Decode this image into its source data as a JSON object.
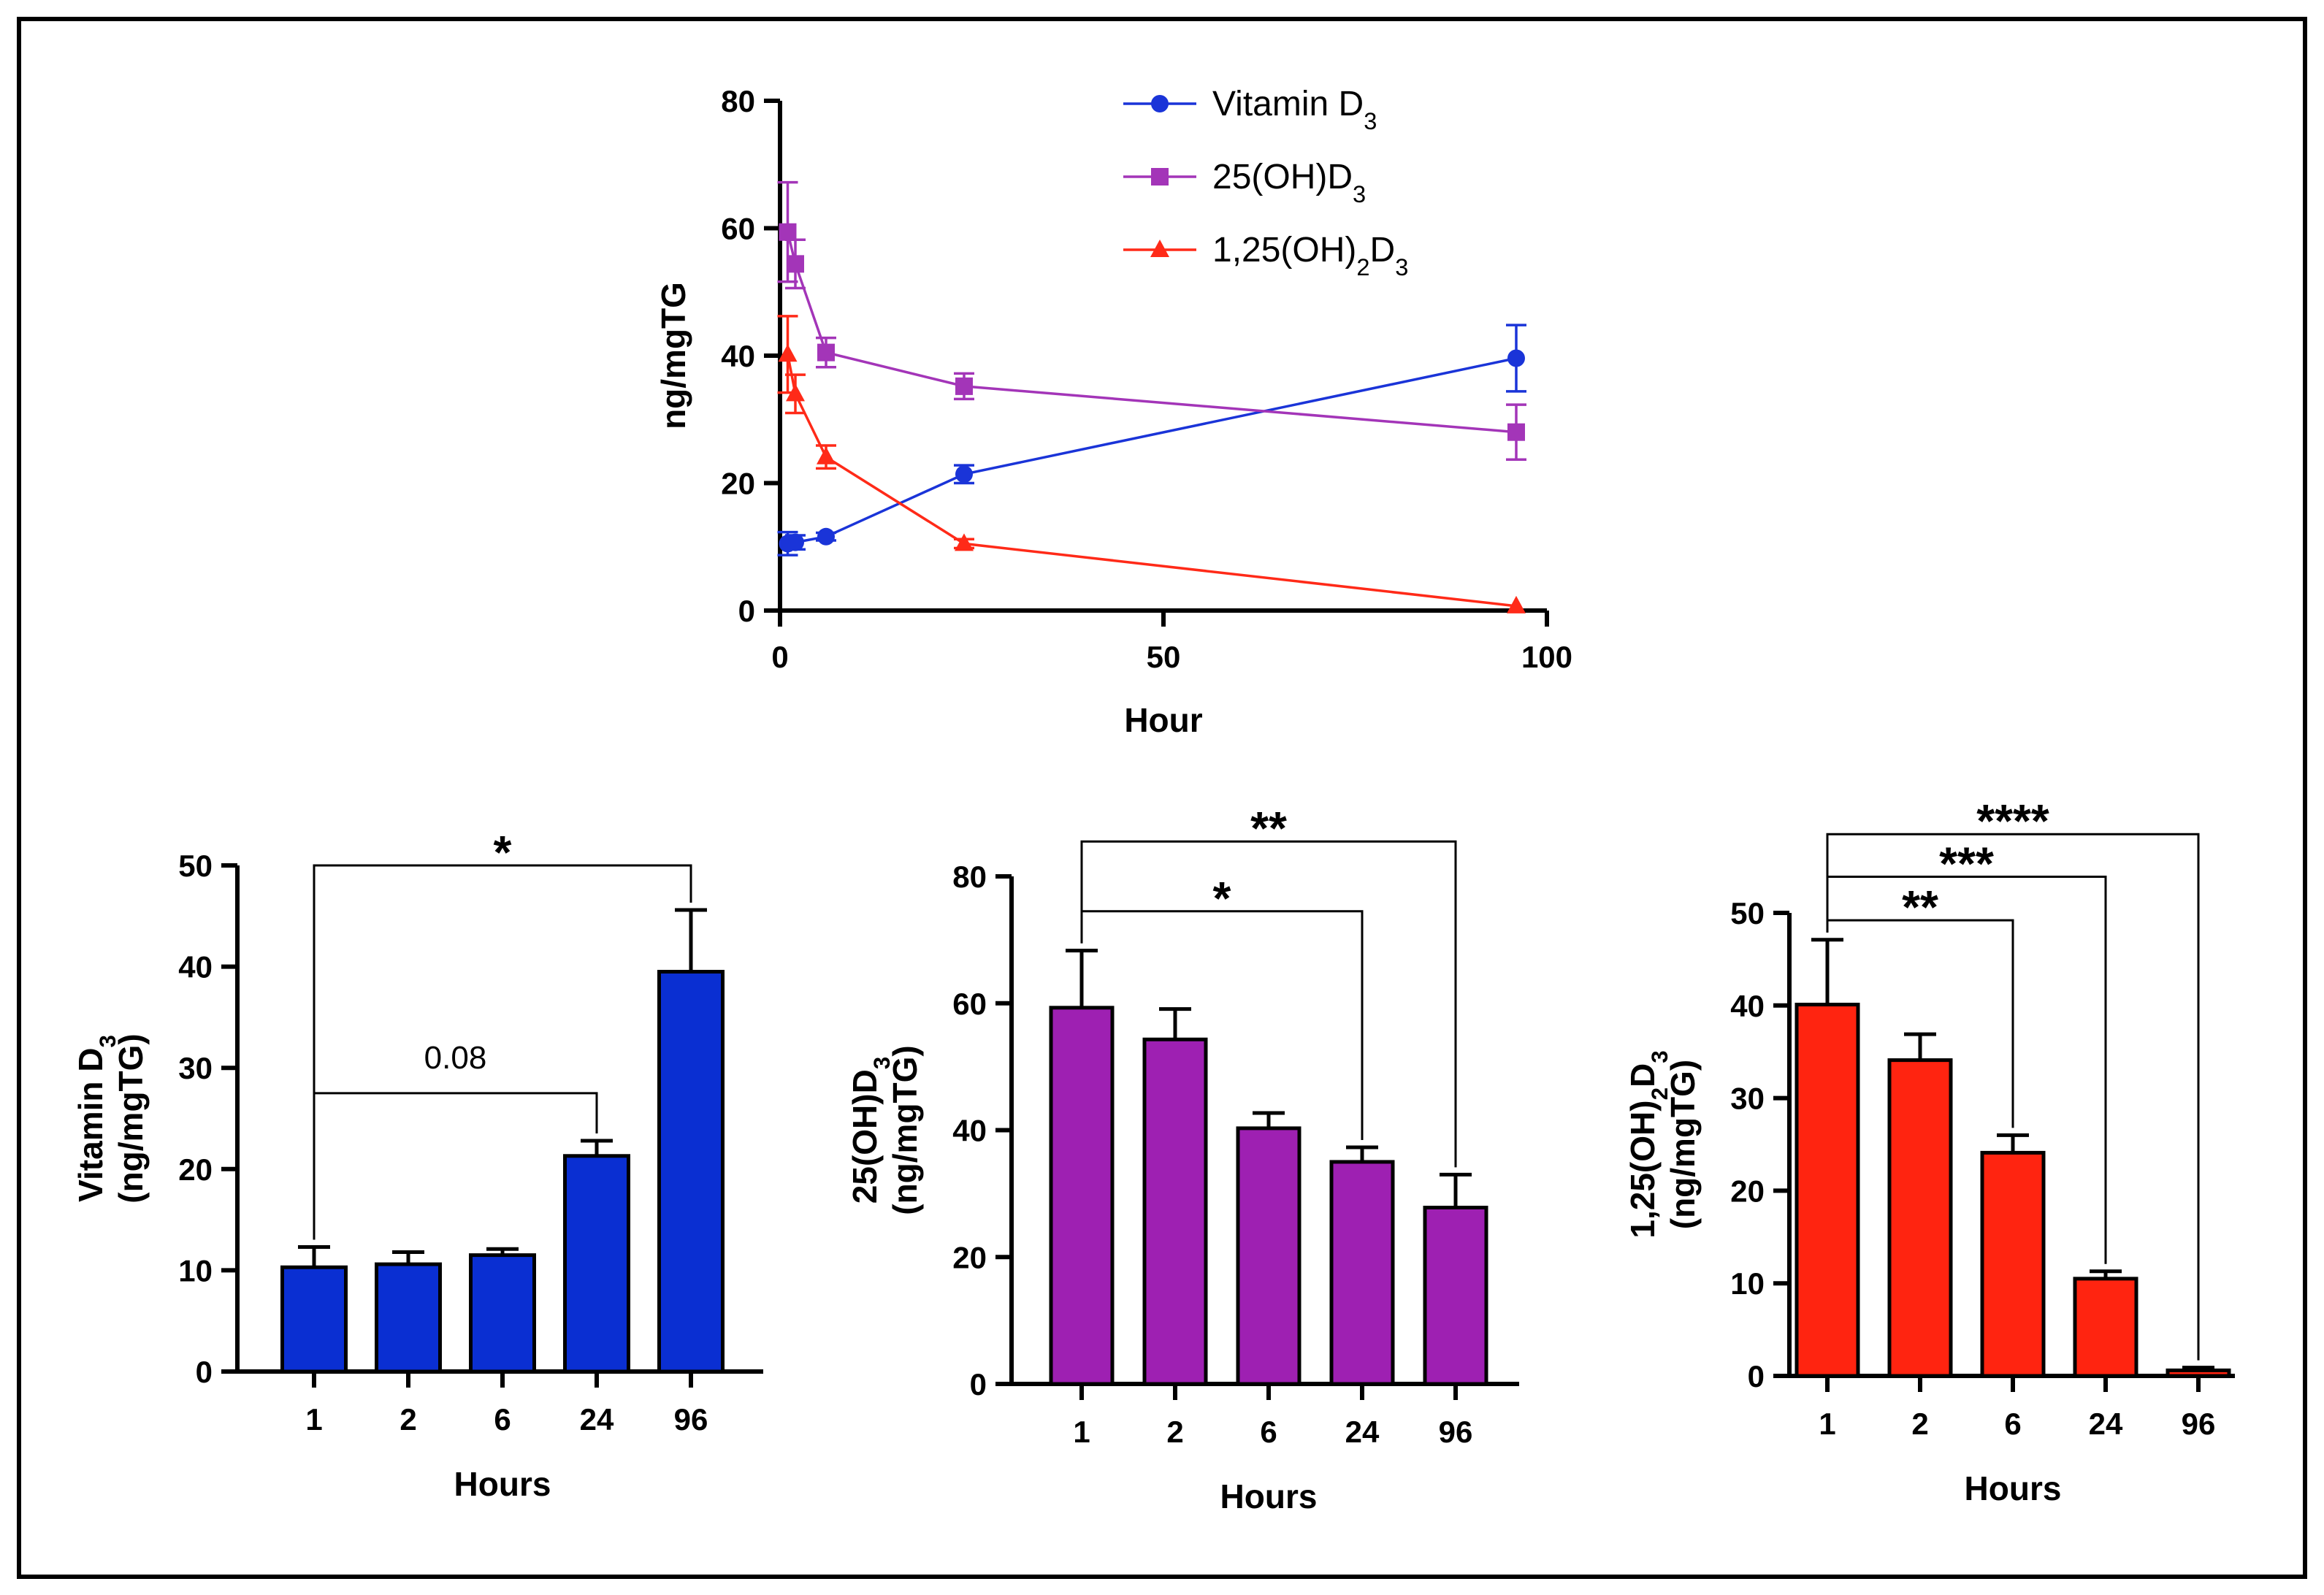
{
  "chart_data": [
    {
      "id": "line",
      "type": "line",
      "xlabel": "Hour",
      "ylabel": "ng/mgTG",
      "xlim": [
        0,
        100
      ],
      "ylim": [
        0,
        80
      ],
      "xticks": [
        "0",
        "50",
        "100"
      ],
      "yticks": [
        "0",
        "20",
        "40",
        "60",
        "80"
      ],
      "legend_position": "top-right",
      "series": [
        {
          "name": "Vitamin D3",
          "label_main": "Vitamin D",
          "label_sub": "3",
          "color": "#1a34d8",
          "marker": "circle",
          "x": [
            1,
            2,
            6,
            24,
            96
          ],
          "values": [
            10.5,
            10.7,
            11.6,
            21.4,
            39.6
          ],
          "errors": [
            1.8,
            1.1,
            0.6,
            1.4,
            5.2
          ]
        },
        {
          "name": "25(OH)D3",
          "label_main": "25(OH)D",
          "label_sub": "3",
          "color": "#a335b8",
          "marker": "square",
          "x": [
            1,
            2,
            6,
            24,
            96
          ],
          "values": [
            59.4,
            54.4,
            40.5,
            35.2,
            28.0
          ],
          "errors": [
            7.8,
            3.8,
            2.3,
            2.0,
            4.3
          ]
        },
        {
          "name": "1,25(OH)2D3",
          "label_main": "1,25(OH)",
          "label_sub": "2",
          "label_main2": "D",
          "label_sub2": "3",
          "color": "#ff2a18",
          "marker": "triangle",
          "x": [
            1,
            2,
            6,
            24,
            96
          ],
          "values": [
            40.2,
            34.0,
            24.1,
            10.5,
            0.7
          ],
          "errors": [
            6.0,
            3.0,
            1.8,
            0.7,
            0.2
          ]
        }
      ]
    },
    {
      "id": "bar-vitd",
      "type": "bar",
      "categories": [
        "1",
        "2",
        "6",
        "24",
        "96"
      ],
      "values": [
        10.3,
        10.6,
        11.5,
        21.3,
        39.5
      ],
      "errors": [
        2.0,
        1.2,
        0.6,
        1.5,
        6.1
      ],
      "color": "#0a2fd2",
      "xlabel": "Hours",
      "ylabel_main": "Vitamin D",
      "ylabel_sub": "3",
      "ylabel_unit": "(ng/mgTG)",
      "ylim": [
        0,
        50
      ],
      "yticks": [
        "0",
        "10",
        "20",
        "30",
        "40",
        "50"
      ],
      "brackets": [
        {
          "from": 0,
          "to": 4,
          "label": "*",
          "level": 50.0,
          "kind": "sig"
        },
        {
          "from": 0,
          "to": 3,
          "label": "0.08",
          "level": 27.5,
          "kind": "p"
        }
      ]
    },
    {
      "id": "bar-25",
      "type": "bar",
      "categories": [
        "1",
        "2",
        "6",
        "24",
        "96"
      ],
      "values": [
        59.3,
        54.3,
        40.3,
        35.0,
        27.8
      ],
      "errors": [
        9.0,
        4.8,
        2.4,
        2.3,
        5.2
      ],
      "color": "#9e20b2",
      "xlabel": "Hours",
      "ylabel_main": "25(OH)D",
      "ylabel_sub": "3",
      "ylabel_unit": "(ng/mgTG)",
      "ylim": [
        0,
        80
      ],
      "yticks": [
        "0",
        "20",
        "40",
        "60",
        "80"
      ],
      "brackets": [
        {
          "from": 0,
          "to": 4,
          "label": "**",
          "level": 85.5,
          "kind": "sig"
        },
        {
          "from": 0,
          "to": 3,
          "label": "*",
          "level": 74.5,
          "kind": "sig"
        }
      ]
    },
    {
      "id": "bar-125",
      "type": "bar",
      "categories": [
        "1",
        "2",
        "6",
        "24",
        "96"
      ],
      "values": [
        40.1,
        34.1,
        24.1,
        10.5,
        0.6
      ],
      "errors": [
        7.0,
        2.8,
        1.9,
        0.8,
        0.3
      ],
      "color": "#ff2410",
      "xlabel": "Hours",
      "ylabel_main": "1,25(OH)",
      "ylabel_sub": "2",
      "ylabel_main2": "D",
      "ylabel_sub2": "3",
      "ylabel_unit": "(ng/mgTG)",
      "ylim": [
        0,
        50
      ],
      "yticks": [
        "0",
        "10",
        "20",
        "30",
        "40",
        "50"
      ],
      "brackets": [
        {
          "from": 0,
          "to": 4,
          "label": "****",
          "level": 58.5,
          "kind": "sig"
        },
        {
          "from": 0,
          "to": 3,
          "label": "***",
          "level": 53.9,
          "kind": "sig"
        },
        {
          "from": 0,
          "to": 2,
          "label": "**",
          "level": 49.2,
          "kind": "sig"
        }
      ]
    }
  ]
}
